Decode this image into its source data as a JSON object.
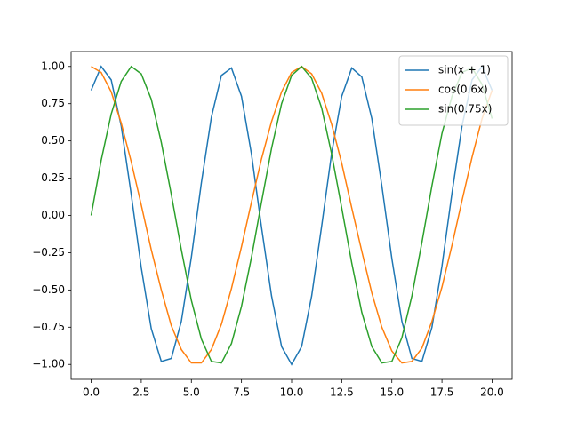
{
  "chart_data": {
    "type": "line",
    "x": [
      0,
      0.5,
      1,
      1.5,
      2,
      2.5,
      3,
      3.5,
      4,
      4.5,
      5,
      5.5,
      6,
      6.5,
      7,
      7.5,
      8,
      8.5,
      9,
      9.5,
      10,
      10.5,
      11,
      11.5,
      12,
      12.5,
      13,
      13.5,
      14,
      14.5,
      15,
      15.5,
      16,
      16.5,
      17,
      17.5,
      18,
      18.5,
      19,
      19.5,
      20
    ],
    "series": [
      {
        "name": "sin(x + 1)",
        "color": "#1f77b4",
        "values": [
          0.84,
          1.0,
          0.91,
          0.6,
          0.14,
          -0.35,
          -0.76,
          -0.98,
          -0.96,
          -0.71,
          -0.28,
          0.22,
          0.66,
          0.94,
          0.99,
          0.8,
          0.41,
          -0.08,
          -0.54,
          -0.88,
          -1.0,
          -0.88,
          -0.54,
          -0.07,
          0.42,
          0.8,
          0.99,
          0.93,
          0.65,
          0.2,
          -0.29,
          -0.71,
          -0.96,
          -0.98,
          -0.75,
          -0.34,
          0.15,
          0.6,
          0.91,
          1.0,
          0.84
        ]
      },
      {
        "name": "cos(0.6x)",
        "color": "#ff7f0e",
        "values": [
          1.0,
          0.96,
          0.83,
          0.62,
          0.36,
          0.07,
          -0.23,
          -0.5,
          -0.74,
          -0.9,
          -0.99,
          -0.99,
          -0.9,
          -0.73,
          -0.49,
          -0.21,
          0.09,
          0.38,
          0.63,
          0.83,
          0.96,
          1.0,
          0.95,
          0.82,
          0.61,
          0.35,
          0.05,
          -0.24,
          -0.52,
          -0.75,
          -0.91,
          -0.99,
          -0.98,
          -0.89,
          -0.71,
          -0.48,
          -0.2,
          0.1,
          0.39,
          0.65,
          0.84
        ]
      },
      {
        "name": "sin(0.75x)",
        "color": "#2ca02c",
        "values": [
          0,
          0.37,
          0.68,
          0.9,
          1.0,
          0.95,
          0.78,
          0.49,
          0.14,
          -0.23,
          -0.57,
          -0.83,
          -0.98,
          -0.99,
          -0.86,
          -0.61,
          -0.28,
          0.09,
          0.45,
          0.75,
          0.94,
          1.0,
          0.92,
          0.72,
          0.41,
          0.05,
          -0.32,
          -0.65,
          -0.88,
          -0.99,
          -0.98,
          -0.82,
          -0.54,
          -0.18,
          0.2,
          0.55,
          0.8,
          0.96,
          0.99,
          0.88,
          0.65
        ]
      }
    ],
    "xlim": [
      -1,
      21
    ],
    "ylim": [
      -1.1,
      1.1
    ],
    "xticks": [
      {
        "value": 0,
        "label": "0.0"
      },
      {
        "value": 2.5,
        "label": "2.5"
      },
      {
        "value": 5,
        "label": "5.0"
      },
      {
        "value": 7.5,
        "label": "7.5"
      },
      {
        "value": 10,
        "label": "10.0"
      },
      {
        "value": 12.5,
        "label": "12.5"
      },
      {
        "value": 15,
        "label": "15.0"
      },
      {
        "value": 17.5,
        "label": "17.5"
      },
      {
        "value": 20,
        "label": "20.0"
      }
    ],
    "yticks": [
      {
        "value": -1,
        "label": "−1.00"
      },
      {
        "value": -0.75,
        "label": "−0.75"
      },
      {
        "value": -0.5,
        "label": "−0.50"
      },
      {
        "value": -0.25,
        "label": "−0.25"
      },
      {
        "value": 0,
        "label": "0.00"
      },
      {
        "value": 0.25,
        "label": "0.25"
      },
      {
        "value": 0.5,
        "label": "0.50"
      },
      {
        "value": 0.75,
        "label": "0.75"
      },
      {
        "value": 1,
        "label": "1.00"
      }
    ],
    "legend": "upper right"
  }
}
